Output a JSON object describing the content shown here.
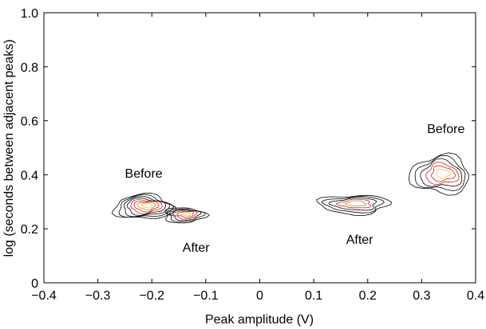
{
  "chart_data": {
    "type": "contour",
    "xlabel": "Peak amplitude (V)",
    "ylabel": "log (seconds between adjacent peaks)",
    "xlim": [
      -0.4,
      0.4
    ],
    "ylim": [
      0,
      1.0
    ],
    "x_ticks": [
      "−0.4",
      "−0.3",
      "−0.2",
      "−0.1",
      "0",
      "0.1",
      "0.2",
      "0.3",
      "0.4"
    ],
    "y_ticks": [
      "0",
      "0.2",
      "0.4",
      "0.6",
      "0.8",
      "1.0"
    ],
    "grid": false,
    "colors": {
      "outer": "#000000",
      "mid": "#cc2222",
      "inner": "#e08020",
      "core": "#f0c040"
    },
    "annotations": [
      {
        "text": "Before",
        "x": -0.215,
        "y": 0.39
      },
      {
        "text": "After",
        "x": -0.118,
        "y": 0.115
      },
      {
        "text": "After",
        "x": 0.185,
        "y": 0.145
      },
      {
        "text": "Before",
        "x": 0.345,
        "y": 0.555
      }
    ],
    "clusters": [
      {
        "id": "neg-before",
        "cx": -0.215,
        "cy": 0.28,
        "rx": 0.055,
        "ry": 0.045,
        "levels": 8
      },
      {
        "id": "neg-after",
        "cx": -0.14,
        "cy": 0.25,
        "rx": 0.038,
        "ry": 0.028,
        "levels": 6
      },
      {
        "id": "pos-after",
        "cx": 0.175,
        "cy": 0.29,
        "rx": 0.065,
        "ry": 0.035,
        "levels": 5
      },
      {
        "id": "pos-before",
        "cx": 0.335,
        "cy": 0.4,
        "rx": 0.055,
        "ry": 0.07,
        "levels": 6
      }
    ]
  }
}
